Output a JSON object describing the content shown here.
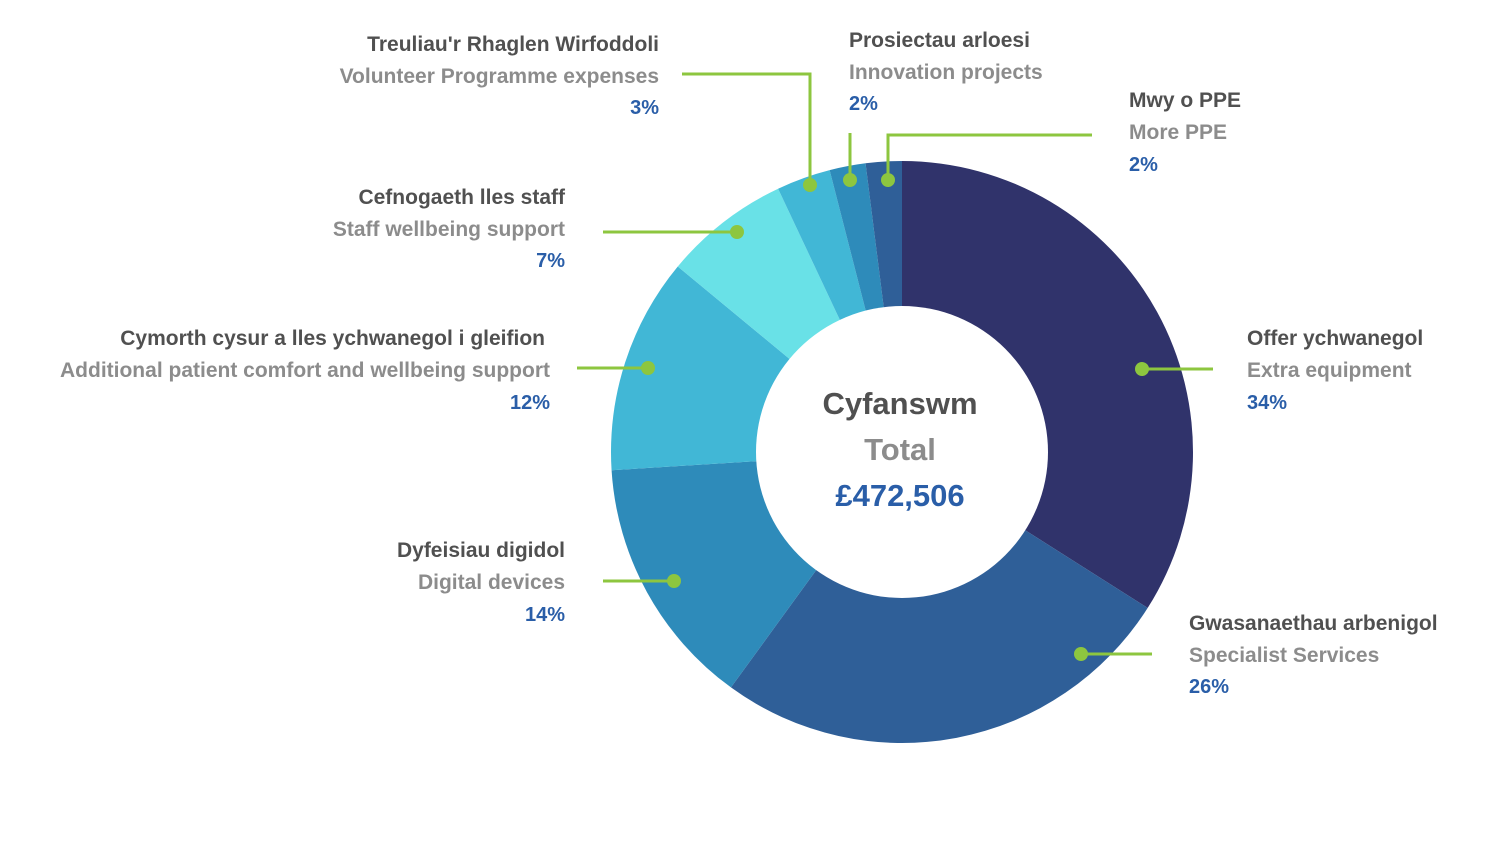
{
  "chart_data": {
    "type": "pie",
    "center": {
      "welsh": "Cyfanswm",
      "english": "Total",
      "value": "£472,506"
    },
    "slices": [
      {
        "welsh": "Offer ychwanegol",
        "english": "Extra equipment",
        "value": 34,
        "label": "34%",
        "color": "#30336b"
      },
      {
        "welsh": "Gwasanaethau arbenigol",
        "english": "Specialist Services",
        "value": 26,
        "label": "26%",
        "color": "#2f5f98"
      },
      {
        "welsh": "Dyfeisiau digidol",
        "english": "Digital devices",
        "value": 14,
        "label": "14%",
        "color": "#2e8bba"
      },
      {
        "welsh": "Cymorth cysur a lles ychwanegol i gleifion",
        "english": "Additional patient comfort and wellbeing support",
        "value": 12,
        "label": "12%",
        "color": "#41b7d6"
      },
      {
        "welsh": "Cefnogaeth lles staff",
        "english": "Staff wellbeing support",
        "value": 7,
        "label": "7%",
        "color": "#69e1e7"
      },
      {
        "welsh": "Treuliau'r Rhaglen Wirfoddoli",
        "english": "Volunteer Programme expenses",
        "value": 3,
        "label": "3%",
        "color": "#41b7d6"
      },
      {
        "welsh": "Prosiectau arloesi",
        "english": "Innovation projects",
        "value": 2,
        "label": "2%",
        "color": "#2e8bba"
      },
      {
        "welsh": "Mwy o PPE",
        "english": "More PPE",
        "value": 2,
        "label": "2%",
        "color": "#2f5f98"
      }
    ],
    "leader_color": "#8dc63f"
  }
}
